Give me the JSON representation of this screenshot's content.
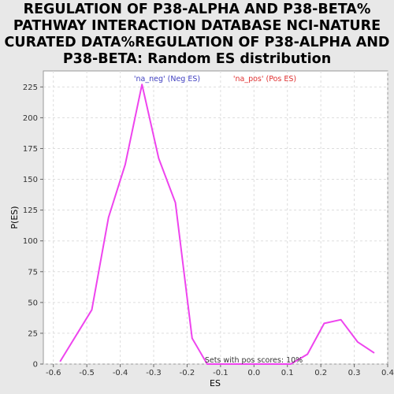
{
  "chart_data": {
    "type": "line",
    "title": "REGULATION OF P38-ALPHA AND P38-BETA%\nPATHWAY INTERACTION DATABASE NCI-NATURE\nCURATED DATA%REGULATION OF P38-ALPHA AND\nP38-BETA: Random ES distribution",
    "xlabel": "ES",
    "ylabel": "P(ES)",
    "xlim": [
      -0.63,
      0.4
    ],
    "ylim": [
      0,
      238
    ],
    "x_ticks": [
      -0.6,
      -0.5,
      -0.4,
      -0.3,
      -0.2,
      -0.1,
      0.0,
      0.1,
      0.2,
      0.3,
      0.4
    ],
    "x_tick_labels": [
      "-0.6",
      "-0.5",
      "-0.4",
      "-0.3",
      "-0.2",
      "-0.1",
      "0.0",
      "0.1",
      "0.2",
      "0.3",
      "0.4"
    ],
    "y_ticks": [
      0,
      25,
      50,
      75,
      100,
      125,
      150,
      175,
      200,
      225
    ],
    "y_tick_labels": [
      "0",
      "25",
      "50",
      "75",
      "100",
      "125",
      "150",
      "175",
      "200",
      "225"
    ],
    "grid": true,
    "legend_placement": "top",
    "legend": [
      {
        "label": "'na_neg' (Neg ES)",
        "color": "#4040c0"
      },
      {
        "label": "'na_pos' (Pos ES)",
        "color": "#e03030"
      }
    ],
    "annotation": "Sets with pos scores: 10%",
    "series": [
      {
        "color": "#ee44ee",
        "x": [
          -0.58,
          -0.485,
          -0.435,
          -0.385,
          -0.335,
          -0.285,
          -0.235,
          -0.185,
          -0.14,
          0.11,
          0.16,
          0.21,
          0.26,
          0.31,
          0.36
        ],
        "y": [
          2,
          44,
          119,
          162,
          227,
          167,
          131,
          21,
          0,
          0,
          8,
          33,
          36,
          18,
          9
        ]
      }
    ]
  }
}
